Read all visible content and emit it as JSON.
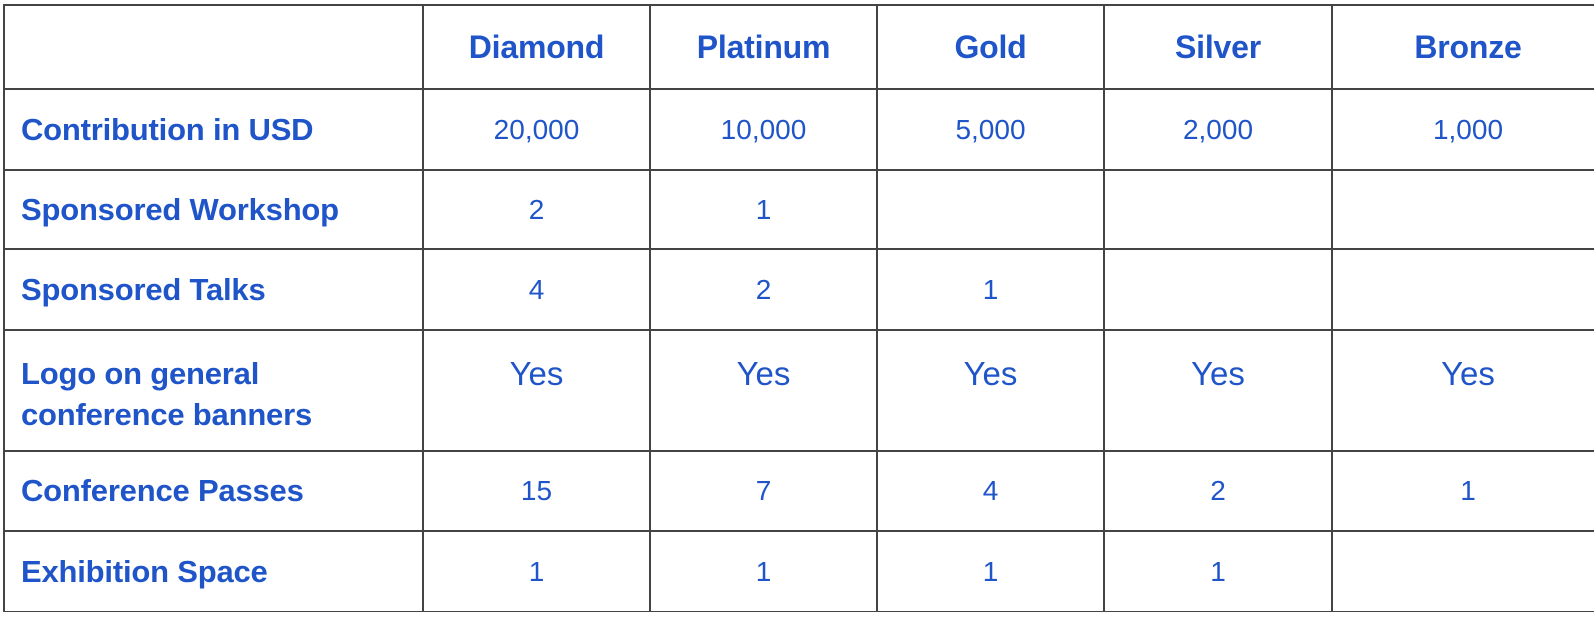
{
  "table": {
    "columns": [
      "",
      "Diamond",
      "Platinum",
      "Gold",
      "Silver",
      "Bronze"
    ],
    "rows": [
      {
        "label": "Contribution in USD",
        "values": [
          "20,000",
          "10,000",
          "5,000",
          "2,000",
          "1,000"
        ]
      },
      {
        "label": "Sponsored Workshop",
        "values": [
          "2",
          "1",
          "",
          "",
          ""
        ]
      },
      {
        "label": "Sponsored Talks",
        "values": [
          "4",
          "2",
          "1",
          "",
          ""
        ]
      },
      {
        "label": "Logo on general conference banners",
        "values": [
          "Yes",
          "Yes",
          "Yes",
          "Yes",
          "Yes"
        ]
      },
      {
        "label": "Conference Passes",
        "values": [
          "15",
          "7",
          "4",
          "2",
          "1"
        ]
      },
      {
        "label": "Exhibition Space",
        "values": [
          "1",
          "1",
          "1",
          "1",
          ""
        ]
      }
    ]
  },
  "colors": {
    "text": "#1f55c8",
    "border": "#444444",
    "background": "#ffffff"
  }
}
